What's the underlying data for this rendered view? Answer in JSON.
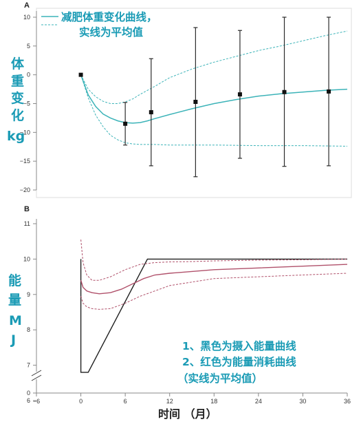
{
  "x_label": "时间  （月）",
  "x_ticks": [
    "−6",
    "0",
    "6",
    "12",
    "18",
    "24",
    "30",
    "36"
  ],
  "colors": {
    "teal": "#3bb3b8",
    "label_blue": "#1a9bb5",
    "intake_black": "#1f1f1f",
    "expend_red": "#b0506a",
    "errorbar": "#2a2a2a"
  },
  "panel_a": {
    "letter": "A",
    "ylabel_chars": [
      "体",
      "重",
      "变",
      "化",
      "kg"
    ],
    "legend_line1": "减肥体重变化曲线，",
    "legend_line2": "实线为平均值",
    "y_ticks": [
      "10",
      "5",
      "0",
      "−5",
      "−10",
      "−15",
      "−20"
    ]
  },
  "panel_b": {
    "letter": "B",
    "ylabel_chars": [
      "能",
      "量",
      "M",
      "J"
    ],
    "note_lines": [
      "1、黑色为摄入能量曲线",
      "2、红色为能量消耗曲线",
      "（实线为平均值）"
    ],
    "y_ticks": [
      "11",
      "10",
      "9",
      "8",
      "7",
      "6",
      "0"
    ]
  },
  "chart_data": [
    {
      "type": "line",
      "panel": "A",
      "xlim": [
        -6,
        36
      ],
      "ylim": [
        -20,
        10
      ],
      "x_ticks": [
        -6,
        0,
        6,
        12,
        18,
        24,
        30,
        36
      ],
      "y_ticks": [
        10,
        5,
        0,
        -5,
        -10,
        -15,
        -20
      ],
      "series": [
        {
          "role": "mean",
          "style": "solid",
          "x": [
            0,
            1,
            2,
            3,
            4,
            5,
            6,
            7,
            8,
            9,
            10,
            12,
            15,
            18,
            21,
            24,
            27,
            30,
            33,
            36
          ],
          "y": [
            0,
            -3.5,
            -5.5,
            -6.8,
            -7.5,
            -8,
            -8.3,
            -8.4,
            -8.3,
            -8,
            -7.6,
            -6.9,
            -5.9,
            -5,
            -4.3,
            -3.7,
            -3.3,
            -3,
            -2.7,
            -2.5
          ]
        },
        {
          "role": "upper",
          "style": "dashed",
          "x": [
            0,
            1,
            2,
            3,
            4,
            5,
            6,
            7,
            8,
            10,
            12,
            15,
            18,
            21,
            24,
            27,
            30,
            33,
            36
          ],
          "y": [
            0,
            -2.5,
            -3.8,
            -4.6,
            -5,
            -5,
            -4.7,
            -4.2,
            -3.4,
            -2,
            -0.5,
            1,
            2.2,
            3.2,
            4.2,
            5,
            5.9,
            6.8,
            7.6
          ]
        },
        {
          "role": "lower",
          "style": "dashed",
          "x": [
            0,
            1,
            2,
            3,
            4,
            5,
            6,
            7,
            8,
            9,
            10,
            12,
            18,
            24,
            30,
            36
          ],
          "y": [
            0,
            -4,
            -7,
            -9,
            -10.5,
            -11.3,
            -11.8,
            -12,
            -12.1,
            -12.1,
            -12.1,
            -12.2,
            -12.2,
            -12.3,
            -12.3,
            -12.4
          ]
        }
      ],
      "mean_points": {
        "x": [
          0,
          6,
          9.5,
          15.5,
          21.5,
          27.5,
          33.5
        ],
        "y": [
          0,
          -8.5,
          -6.5,
          -4.7,
          -3.4,
          -3,
          -2.9
        ]
      },
      "error_bars": [
        {
          "x": 6,
          "low": -12.2,
          "high": -4.8
        },
        {
          "x": 9.5,
          "low": -15.8,
          "high": 2.8
        },
        {
          "x": 15.5,
          "low": -17.7,
          "high": 8.2
        },
        {
          "x": 21.5,
          "low": -14.5,
          "high": 7.7
        },
        {
          "x": 27.5,
          "low": -15.9,
          "high": 10.0
        },
        {
          "x": 33.5,
          "low": -15.8,
          "high": 10.0
        }
      ]
    },
    {
      "type": "line",
      "panel": "B",
      "xlim": [
        -6,
        36
      ],
      "ylim": [
        5.5,
        11
      ],
      "axis_break": true,
      "y_ticks": [
        11,
        10,
        9,
        8,
        7,
        6
      ],
      "series": [
        {
          "role": "intake",
          "style": "solid",
          "x": [
            0,
            0,
            0,
            1,
            9,
            36
          ],
          "y": [
            10,
            9.3,
            6.8,
            6.8,
            10,
            10
          ]
        },
        {
          "role": "expenditure_mean",
          "style": "solid",
          "x": [
            0,
            0.3,
            0.8,
            1.5,
            2.5,
            4,
            5.5,
            7,
            8.5,
            10,
            12,
            15,
            18,
            24,
            30,
            36
          ],
          "y": [
            9.4,
            9.2,
            9.1,
            9.05,
            9.02,
            9.05,
            9.15,
            9.3,
            9.45,
            9.55,
            9.6,
            9.65,
            9.7,
            9.75,
            9.8,
            9.85
          ]
        },
        {
          "role": "expenditure_upper",
          "style": "dashed",
          "x": [
            0,
            0.3,
            0.8,
            1.5,
            2.5,
            4,
            6,
            8,
            10,
            12,
            15,
            18,
            24,
            30,
            36
          ],
          "y": [
            10.55,
            9.9,
            9.55,
            9.4,
            9.4,
            9.5,
            9.7,
            9.85,
            9.9,
            9.92,
            9.93,
            9.95,
            9.97,
            9.98,
            10
          ]
        },
        {
          "role": "expenditure_lower",
          "style": "dashed",
          "x": [
            0,
            0.3,
            0.8,
            1.5,
            2.5,
            4,
            6,
            8,
            10,
            12,
            15,
            18,
            24,
            30,
            36
          ],
          "y": [
            8.95,
            8.75,
            8.65,
            8.6,
            8.58,
            8.6,
            8.75,
            8.95,
            9.1,
            9.25,
            9.35,
            9.45,
            9.5,
            9.55,
            9.6
          ]
        }
      ]
    }
  ]
}
